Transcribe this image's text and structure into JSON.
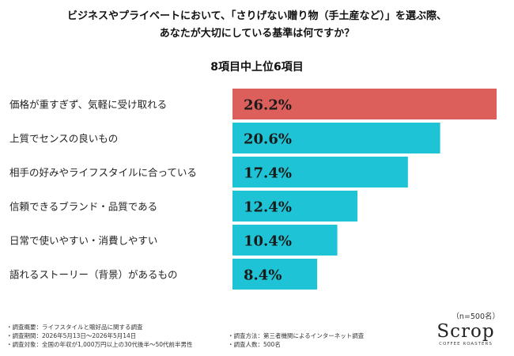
{
  "header": {
    "title_line1": "ビジネスやプライベートにおいて、「さりげない贈り物（手土産など）」を選ぶ際、",
    "title_line2": "あなたが大切にしている基準は何ですか？",
    "subtitle": "8項目中上位6項目"
  },
  "chart_data": {
    "type": "bar",
    "orientation": "horizontal",
    "categories": [
      "価格が重すぎず、気軽に受け取れる",
      "上質でセンスの良いもの",
      "相手の好みやライフスタイルに合っている",
      "信頼できるブランド・品質である",
      "日常で使いやすい・消費しやすい",
      "語れるストーリー（背景）があるもの"
    ],
    "values": [
      26.2,
      20.6,
      17.4,
      12.4,
      10.4,
      8.4
    ],
    "value_labels": [
      "26.2%",
      "20.6%",
      "17.4%",
      "12.4%",
      "10.4%",
      "8.4%"
    ],
    "xlim": [
      0,
      26.2
    ],
    "colors": [
      "#dd5f5b",
      "#1ec4d6",
      "#1ec4d6",
      "#1ec4d6",
      "#1ec4d6",
      "#1ec4d6"
    ],
    "grid": false,
    "legend": "none"
  },
  "sample_note": "（n=500名）",
  "footer": {
    "left": [
      "・調査概要：ライフスタイルと贈好品に関する調査",
      "・調査期間：2026年5月13日〜2026年5月14日",
      "・調査対象：全国の年収が1,000万円以上の30代後半〜50代前半男性"
    ],
    "mid": [
      "・調査方法：第三者機関によるインターネット調査",
      "・調査人数：500名"
    ]
  },
  "logo": {
    "name": "Scrop",
    "tagline": "COFFEE ROASTERS"
  }
}
